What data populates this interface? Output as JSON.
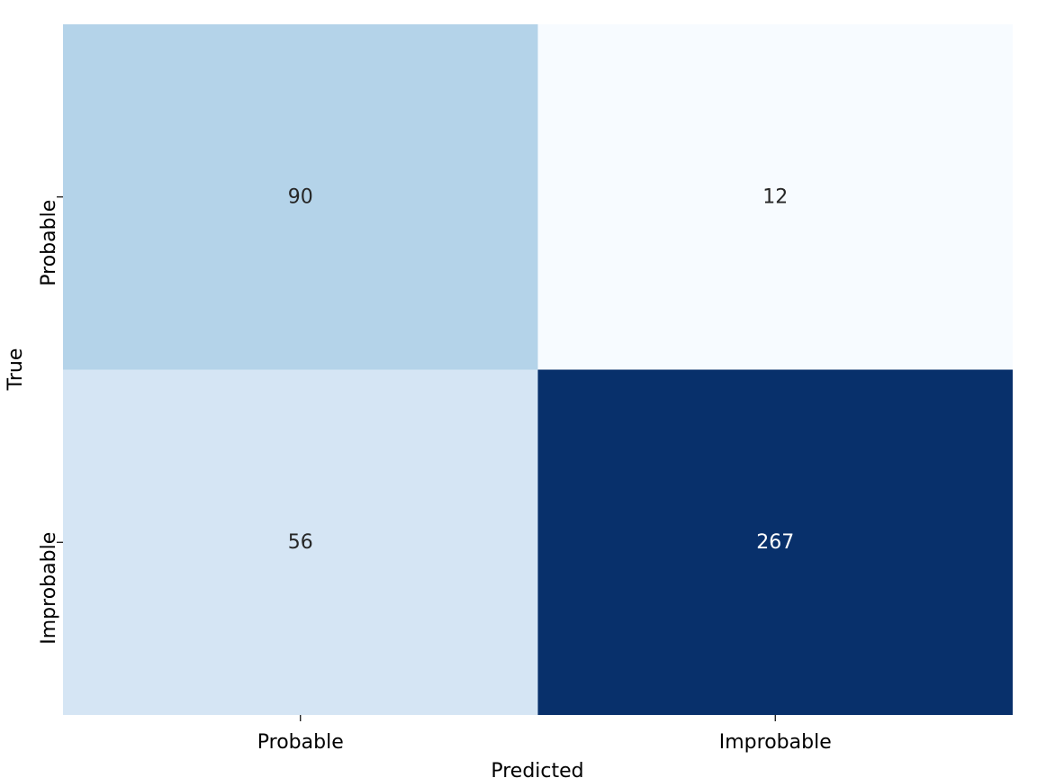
{
  "chart_data": {
    "type": "heatmap",
    "title": "",
    "xlabel": "Predicted",
    "ylabel": "True",
    "x_categories": [
      "Probable",
      "Improbable"
    ],
    "y_categories": [
      "Probable",
      "Improbable"
    ],
    "values": [
      [
        90,
        12
      ],
      [
        56,
        267
      ]
    ],
    "colormap": "Blues",
    "vmin": 12,
    "vmax": 267,
    "colorbar": false,
    "grid": false,
    "colors": {
      "low": "#f7fbff",
      "high": "#08306b",
      "text_dark": "#262626",
      "text_light": "#ffffff"
    }
  }
}
